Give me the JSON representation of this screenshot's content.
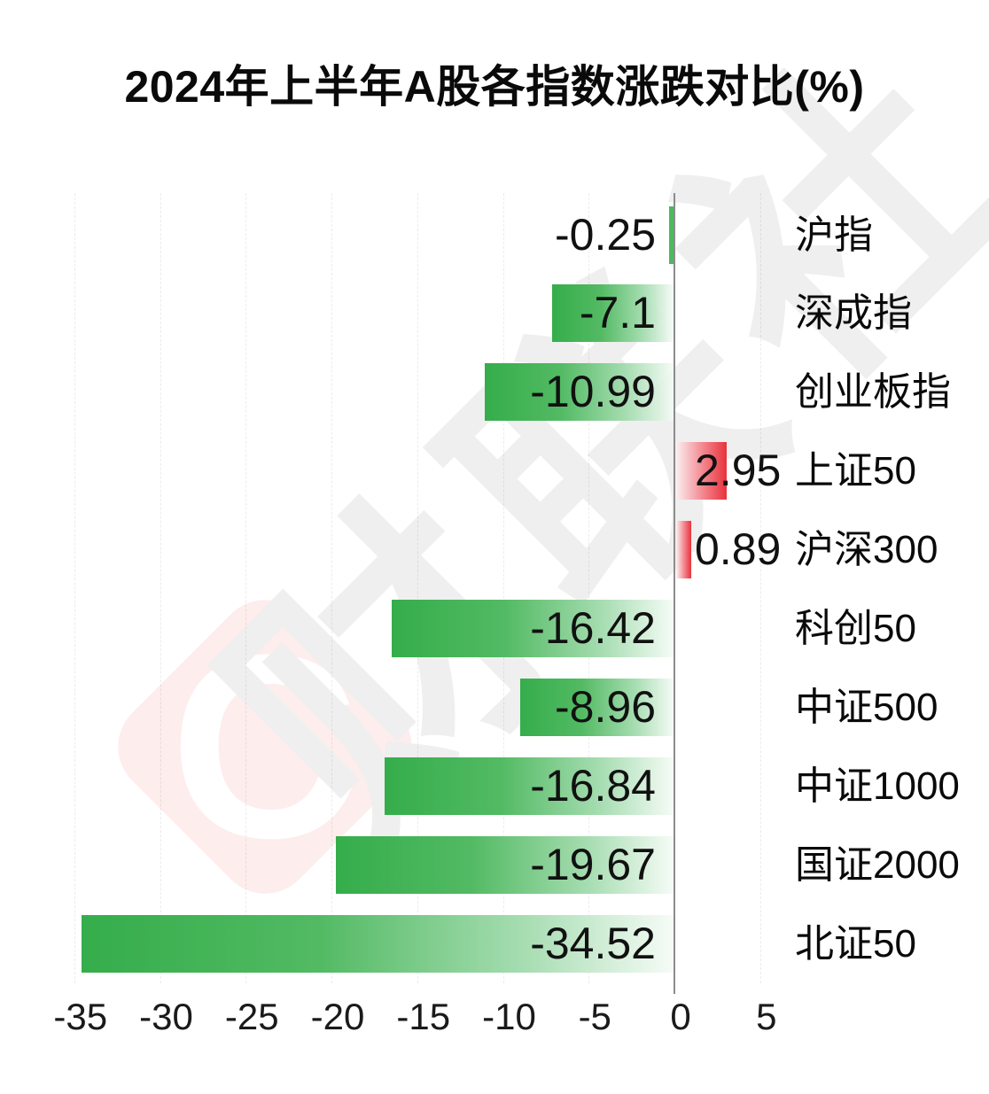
{
  "watermark": {
    "logo_glyph": "C",
    "text": "财联社"
  },
  "chart_data": {
    "type": "bar",
    "orientation": "horizontal",
    "title": "2024年上半年A股各指数涨跌对比(%)",
    "categories": [
      "沪指",
      "深成指",
      "创业板指",
      "上证50",
      "沪深300",
      "科创50",
      "中证500",
      "中证1000",
      "国证2000",
      "北证50"
    ],
    "values": [
      -0.25,
      -7.1,
      -10.99,
      2.95,
      0.89,
      -16.42,
      -8.96,
      -16.84,
      -19.67,
      -34.52
    ],
    "value_labels": [
      "-0.25",
      "-7.1",
      "-10.99",
      "2.95",
      "0.89",
      "-16.42",
      "-8.96",
      "-16.84",
      "-19.67",
      "-34.52"
    ],
    "x_ticks": [
      -35,
      -30,
      -25,
      -20,
      -15,
      -10,
      -5,
      0,
      5
    ],
    "x_tick_labels": [
      "-35",
      "-30",
      "-25",
      "-20",
      "-15",
      "-10",
      "-5",
      "0",
      "5"
    ],
    "xlim": [
      -35,
      5
    ],
    "grid": true,
    "legend": false,
    "colors": {
      "negative_bar": "#35ad4b",
      "positive_bar": "#e8323c",
      "zero_axis": "#8c8c8c",
      "label_text": "#111111",
      "watermark_gray": "#efefef",
      "watermark_pink": "#fdeded"
    }
  }
}
